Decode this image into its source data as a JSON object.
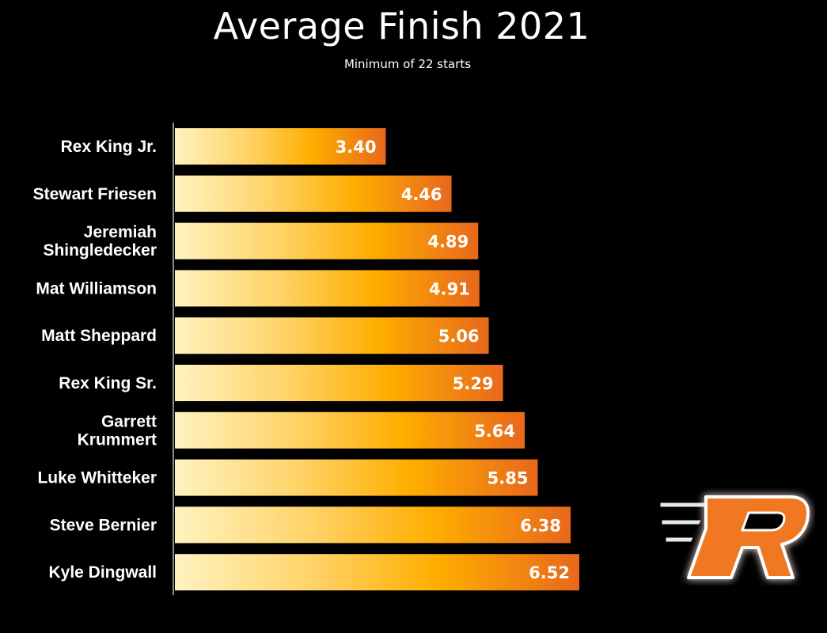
{
  "title": "Average Finish 2021",
  "subtitle": "Minimum of 22 starts",
  "colors": {
    "background": "#000000",
    "bar_light": "#fff0b0",
    "bar_mid": "#ffb000",
    "bar_dark": "#e8701a",
    "logo_orange": "#f07820"
  },
  "logo": {
    "icon": "r-logo-icon",
    "letter": "R"
  },
  "chart_data": {
    "type": "bar",
    "orientation": "horizontal",
    "categories": [
      [
        "Rex King Jr."
      ],
      [
        "Stewart Friesen"
      ],
      [
        "Jeremiah",
        "Shingledecker"
      ],
      [
        "Mat Williamson"
      ],
      [
        "Matt Sheppard"
      ],
      [
        "Rex King Sr."
      ],
      [
        "Garrett",
        "Krummert"
      ],
      [
        "Luke Whitteker"
      ],
      [
        "Steve Bernier"
      ],
      [
        "Kyle Dingwall"
      ]
    ],
    "values": [
      3.4,
      4.46,
      4.89,
      4.91,
      5.06,
      5.29,
      5.64,
      5.85,
      6.38,
      6.52
    ],
    "value_labels": [
      "3.40",
      "4.46",
      "4.89",
      "4.91",
      "5.06",
      "5.29",
      "5.64",
      "5.85",
      "6.38",
      "6.52"
    ],
    "title": "Average Finish 2021",
    "subtitle": "Minimum of 22 starts",
    "xlim": [
      0,
      6.52
    ],
    "grid": false,
    "legend": "none"
  }
}
